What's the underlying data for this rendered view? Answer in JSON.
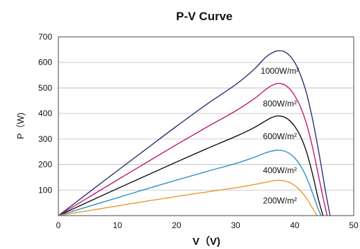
{
  "chart_data": {
    "type": "line",
    "title": "P-V Curve",
    "xlabel": "V（V)",
    "ylabel": "P（W)",
    "xlim": [
      0,
      50
    ],
    "ylim": [
      0,
      700
    ],
    "xticks": [
      0,
      10,
      20,
      30,
      40,
      50
    ],
    "yticks": [
      100,
      200,
      300,
      400,
      500,
      600,
      700
    ],
    "grid": true,
    "series": [
      {
        "name": "1000W/m²",
        "color": "#2e2f74",
        "x": [
          0,
          5,
          10,
          15,
          20,
          25,
          30,
          33,
          35,
          36,
          37,
          38,
          39,
          40,
          41,
          42,
          43,
          44,
          45,
          45.5,
          46
        ],
        "y": [
          0,
          88,
          176,
          263,
          350,
          434,
          513,
          570,
          618,
          635,
          645,
          644,
          630,
          600,
          550,
          480,
          380,
          260,
          125,
          60,
          0
        ]
      },
      {
        "name": "800W/m²",
        "color": "#c0186e",
        "x": [
          0,
          5,
          10,
          15,
          20,
          25,
          30,
          33,
          35,
          36,
          37,
          38,
          39,
          40,
          41,
          42,
          43,
          44,
          45,
          45.5
        ],
        "y": [
          0,
          70,
          140,
          209,
          278,
          345,
          410,
          455,
          492,
          508,
          517,
          515,
          500,
          470,
          425,
          360,
          270,
          160,
          50,
          0
        ]
      },
      {
        "name": "600W/m²",
        "color": "#111111",
        "x": [
          0,
          5,
          10,
          15,
          20,
          25,
          30,
          33,
          35,
          36,
          37,
          38,
          39,
          40,
          41,
          42,
          43,
          44,
          44.8
        ],
        "y": [
          0,
          53,
          106,
          158,
          210,
          261,
          310,
          343,
          370,
          383,
          390,
          388,
          375,
          350,
          310,
          250,
          165,
          65,
          0
        ]
      },
      {
        "name": "400W/m²",
        "color": "#2f8ec7",
        "x": [
          0,
          5,
          10,
          15,
          20,
          25,
          30,
          33,
          35,
          36,
          37,
          38,
          39,
          40,
          41,
          42,
          43,
          44,
          44.5
        ],
        "y": [
          0,
          35,
          70,
          105,
          139,
          172,
          204,
          227,
          245,
          252,
          256,
          254,
          245,
          226,
          195,
          150,
          90,
          25,
          0
        ]
      },
      {
        "name": "200W/m²",
        "color": "#e89a2c",
        "x": [
          0,
          5,
          10,
          15,
          20,
          25,
          30,
          33,
          35,
          36,
          37,
          38,
          39,
          40,
          41,
          42,
          43,
          43.8
        ],
        "y": [
          0,
          19,
          38,
          57,
          75,
          92,
          109,
          121,
          130,
          135,
          138,
          137,
          131,
          118,
          97,
          68,
          30,
          0
        ]
      }
    ]
  }
}
